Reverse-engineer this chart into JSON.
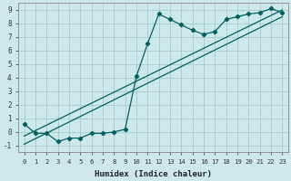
{
  "title": "",
  "xlabel": "Humidex (Indice chaleur)",
  "ylabel": "",
  "bg_color": "#cce8e8",
  "grid_color": "#aacece",
  "line_color": "#006060",
  "xlim": [
    -0.5,
    23.5
  ],
  "ylim": [
    -1.5,
    9.5
  ],
  "xticks": [
    0,
    1,
    2,
    3,
    4,
    5,
    6,
    7,
    8,
    9,
    10,
    11,
    12,
    13,
    14,
    15,
    16,
    17,
    18,
    19,
    20,
    21,
    22,
    23
  ],
  "yticks": [
    -1,
    0,
    1,
    2,
    3,
    4,
    5,
    6,
    7,
    8,
    9
  ],
  "data_x": [
    0,
    1,
    2,
    3,
    4,
    5,
    6,
    7,
    8,
    9,
    10,
    11,
    12,
    13,
    14,
    15,
    16,
    17,
    18,
    19,
    20,
    21,
    22,
    23
  ],
  "data_y": [
    0.6,
    -0.1,
    -0.1,
    -0.7,
    -0.45,
    -0.45,
    -0.1,
    -0.1,
    0.0,
    0.2,
    4.1,
    6.5,
    8.7,
    8.3,
    7.9,
    7.5,
    7.2,
    7.4,
    8.3,
    8.5,
    8.7,
    8.8,
    9.1,
    8.8
  ],
  "line1_x": [
    0,
    23
  ],
  "line1_y": [
    -0.3,
    9.0
  ],
  "line2_x": [
    0,
    23
  ],
  "line2_y": [
    -0.9,
    8.5
  ]
}
